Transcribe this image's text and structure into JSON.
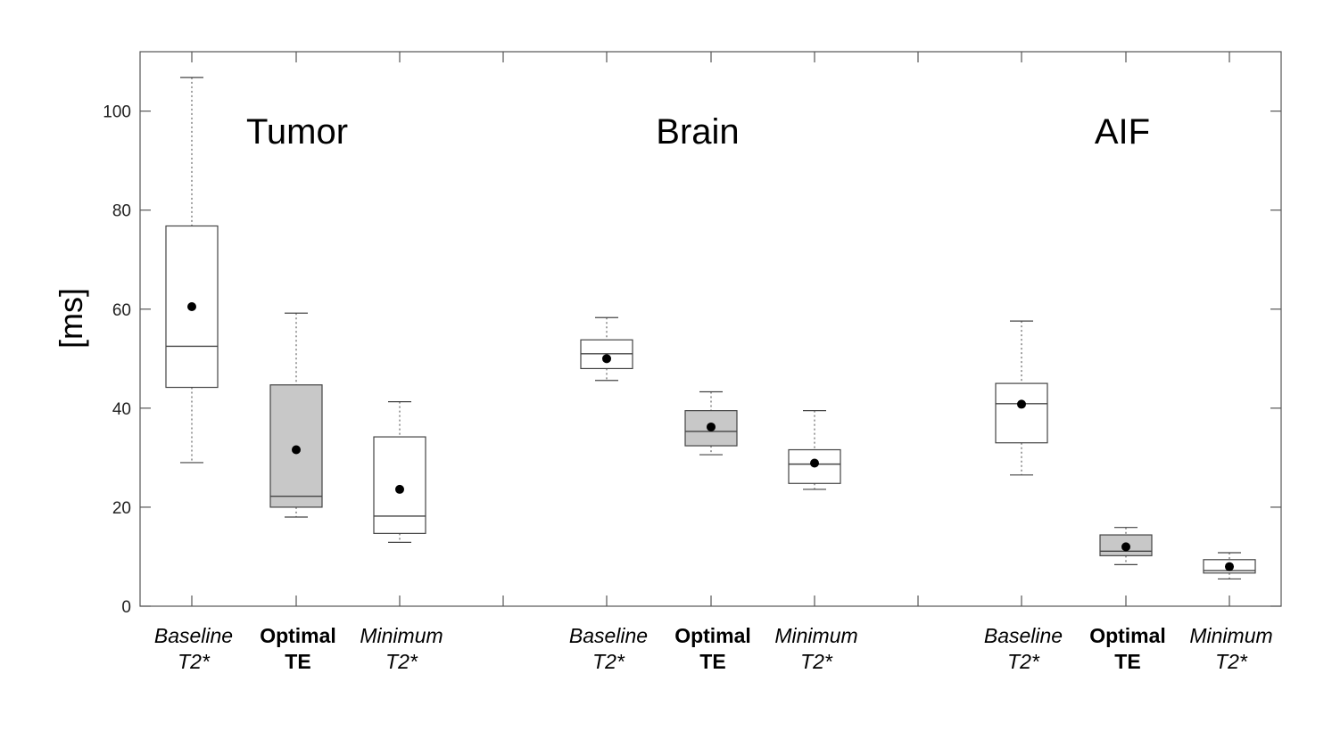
{
  "chart_data": {
    "type": "box",
    "ylabel": "[ms]",
    "ylim": [
      0,
      112
    ],
    "yticks": [
      0,
      20,
      40,
      60,
      80,
      100
    ],
    "groups": [
      {
        "name": "Tumor",
        "boxes": [
          {
            "label_line1": "Baseline",
            "label_line2": "T2*",
            "style": "italic",
            "fill": "#ffffff",
            "min": 29,
            "q1": 44.2,
            "median": 52.5,
            "q3": 76.8,
            "max": 106.8,
            "mean": 60.5
          },
          {
            "label_line1": "Optimal",
            "label_line2": "TE",
            "style": "bold",
            "fill": "#c8c8c8",
            "min": 18,
            "q1": 20,
            "median": 22.2,
            "q3": 44.7,
            "max": 59.2,
            "mean": 31.6
          },
          {
            "label_line1": "Minimum",
            "label_line2": "T2*",
            "style": "italic",
            "fill": "#ffffff",
            "min": 12.9,
            "q1": 14.7,
            "median": 18.2,
            "q3": 34.2,
            "max": 41.3,
            "mean": 23.6
          }
        ]
      },
      {
        "name": "Brain",
        "boxes": [
          {
            "label_line1": "Baseline",
            "label_line2": "T2*",
            "style": "italic",
            "fill": "#ffffff",
            "min": 45.6,
            "q1": 48,
            "median": 51,
            "q3": 53.8,
            "max": 58.3,
            "mean": 50
          },
          {
            "label_line1": "Optimal",
            "label_line2": "TE",
            "style": "bold",
            "fill": "#c8c8c8",
            "min": 30.6,
            "q1": 32.4,
            "median": 35.3,
            "q3": 39.5,
            "max": 43.3,
            "mean": 36.2
          },
          {
            "label_line1": "Minimum",
            "label_line2": "T2*",
            "style": "italic",
            "fill": "#ffffff",
            "min": 23.6,
            "q1": 24.8,
            "median": 28.7,
            "q3": 31.6,
            "max": 39.5,
            "mean": 28.9
          }
        ]
      },
      {
        "name": "AIF",
        "boxes": [
          {
            "label_line1": "Baseline",
            "label_line2": "T2*",
            "style": "italic",
            "fill": "#ffffff",
            "min": 26.5,
            "q1": 33,
            "median": 40.9,
            "q3": 45,
            "max": 57.6,
            "mean": 40.8
          },
          {
            "label_line1": "Optimal",
            "label_line2": "TE",
            "style": "bold",
            "fill": "#c8c8c8",
            "min": 8.4,
            "q1": 10.2,
            "median": 11.1,
            "q3": 14.4,
            "max": 15.9,
            "mean": 12
          },
          {
            "label_line1": "Minimum",
            "label_line2": "T2*",
            "style": "italic",
            "fill": "#ffffff",
            "min": 5.5,
            "q1": 6.7,
            "median": 7.2,
            "q3": 9.4,
            "max": 10.8,
            "mean": 8
          }
        ]
      }
    ],
    "colors": {
      "axis": "#555555",
      "box_stroke": "#444444",
      "mean_dot": "#000000"
    }
  }
}
